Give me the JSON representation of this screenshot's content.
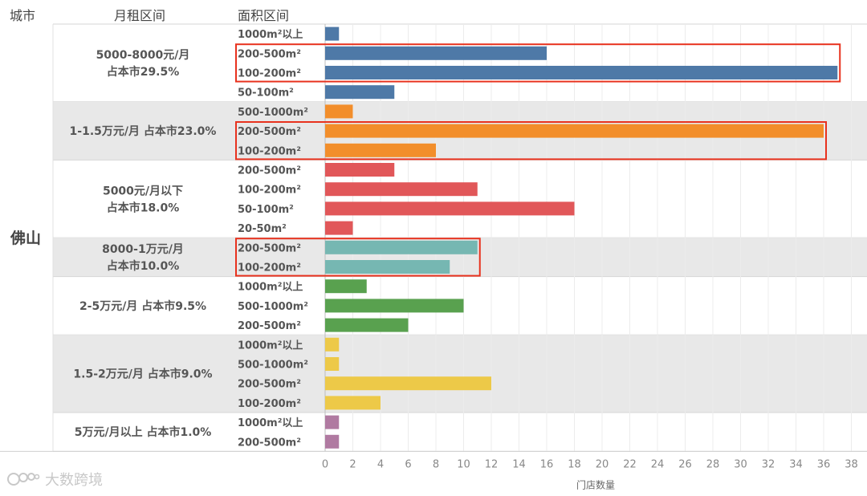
{
  "header": {
    "col_city": "城市",
    "col_rent": "月租区间",
    "col_area": "面积区间"
  },
  "watermark": "大数跨境",
  "chart_data": {
    "type": "bar",
    "orientation": "horizontal",
    "city": "佛山",
    "xlabel": "门店数量",
    "xlim": [
      0,
      38
    ],
    "xticks": [
      0,
      2,
      4,
      6,
      8,
      10,
      12,
      14,
      16,
      18,
      20,
      22,
      24,
      26,
      28,
      30,
      32,
      34,
      36,
      38
    ],
    "groups": [
      {
        "label": [
          "5000-8000元/月",
          "占本市29.5%"
        ],
        "color": "#4e79a7",
        "shaded": false,
        "bars": [
          {
            "area": "1000m²以上",
            "value": 1
          },
          {
            "area": "200-500m²",
            "value": 16
          },
          {
            "area": "100-200m²",
            "value": 37
          },
          {
            "area": "50-100m²",
            "value": 5
          }
        ],
        "highlight": [
          1,
          2
        ]
      },
      {
        "label": [
          "1-1.5万元/月  占本市23.0%"
        ],
        "color": "#f28e2b",
        "shaded": true,
        "bars": [
          {
            "area": "500-1000m²",
            "value": 2
          },
          {
            "area": "200-500m²",
            "value": 36
          },
          {
            "area": "100-200m²",
            "value": 8
          }
        ],
        "highlight": [
          1,
          2
        ]
      },
      {
        "label": [
          "5000元/月以下",
          "占本市18.0%"
        ],
        "color": "#e15759",
        "shaded": false,
        "bars": [
          {
            "area": "200-500m²",
            "value": 5
          },
          {
            "area": "100-200m²",
            "value": 11
          },
          {
            "area": "50-100m²",
            "value": 18
          },
          {
            "area": "20-50m²",
            "value": 2
          }
        ],
        "highlight": []
      },
      {
        "label": [
          "8000-1万元/月",
          "占本市10.0%"
        ],
        "color": "#76b7b2",
        "shaded": true,
        "bars": [
          {
            "area": "200-500m²",
            "value": 11
          },
          {
            "area": "100-200m²",
            "value": 9
          }
        ],
        "highlight": [
          0,
          1
        ]
      },
      {
        "label": [
          "2-5万元/月  占本市9.5%"
        ],
        "color": "#59a14f",
        "shaded": false,
        "bars": [
          {
            "area": "1000m²以上",
            "value": 3
          },
          {
            "area": "500-1000m²",
            "value": 10
          },
          {
            "area": "200-500m²",
            "value": 6
          }
        ],
        "highlight": []
      },
      {
        "label": [
          "1.5-2万元/月  占本市9.0%"
        ],
        "color": "#edc948",
        "shaded": true,
        "bars": [
          {
            "area": "1000m²以上",
            "value": 1
          },
          {
            "area": "500-1000m²",
            "value": 1
          },
          {
            "area": "200-500m²",
            "value": 12
          },
          {
            "area": "100-200m²",
            "value": 4
          }
        ],
        "highlight": []
      },
      {
        "label": [
          "5万元/月以上  占本市1.0%"
        ],
        "color": "#b07aa1",
        "shaded": false,
        "bars": [
          {
            "area": "1000m²以上",
            "value": 1
          },
          {
            "area": "200-500m²",
            "value": 1
          }
        ],
        "highlight": []
      }
    ],
    "highlight_color": "#e8321e"
  }
}
